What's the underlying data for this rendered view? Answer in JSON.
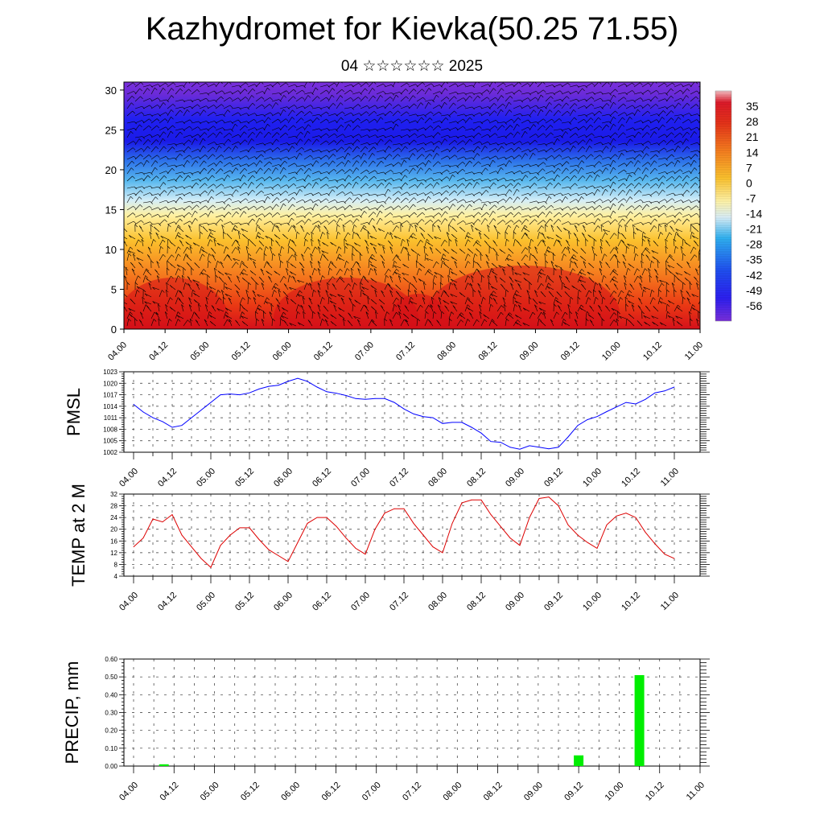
{
  "title": "Kazhydromet for Kievka(50.25 71.55)",
  "subtitle": "04 ☆☆☆☆☆☆ 2025",
  "time_ticks": [
    "04.00",
    "04.12",
    "05.00",
    "05.12",
    "06.00",
    "06.12",
    "07.00",
    "07.12",
    "08.00",
    "08.12",
    "09.00",
    "09.12",
    "10.00",
    "10.12",
    "11.00"
  ],
  "chart_data": [
    {
      "type": "heatmap",
      "description_fields": "cross-section temperature with wind barbs",
      "x": [
        "04.00",
        "04.12",
        "05.00",
        "05.12",
        "06.00",
        "06.12",
        "07.00",
        "07.12",
        "08.00",
        "08.12",
        "09.00",
        "09.12",
        "10.00",
        "10.12",
        "11.00"
      ],
      "ylim": [
        0,
        31
      ],
      "yticks": [
        0,
        5,
        10,
        15,
        20,
        25,
        30
      ],
      "colorbar_labels": [
        "35",
        "28",
        "21",
        "14",
        "7",
        "0",
        "-7",
        "-14",
        "-21",
        "-28",
        "-35",
        "-42",
        "-49",
        "-56"
      ],
      "colorbar_range": [
        -63,
        42
      ],
      "colors": [
        "#6b1fd0",
        "#1f1ff0",
        "#2f7cf0",
        "#bfe4f6",
        "#fffbd0",
        "#fbd23a",
        "#f58a1e",
        "#e8331c",
        "#f4a3a6"
      ]
    },
    {
      "type": "line",
      "ylabel": "PMSL",
      "ylim": [
        1002,
        1023
      ],
      "yticks": [
        1002,
        1005,
        1008,
        1011,
        1014,
        1017,
        1020,
        1023
      ],
      "color": "#0000ff",
      "x": [
        0,
        3,
        6,
        9,
        12,
        15,
        18,
        21,
        24,
        27,
        30,
        33,
        36,
        39,
        42,
        45,
        48,
        51,
        54,
        57,
        60,
        63,
        66,
        69,
        72,
        75,
        78,
        81,
        84,
        87,
        90,
        93,
        96,
        99,
        102,
        105,
        108,
        111,
        114,
        117,
        120,
        123,
        126,
        129,
        132,
        135,
        138,
        141,
        144,
        147,
        150,
        153,
        156,
        159,
        162,
        165,
        168
      ],
      "values": [
        1014.5,
        1012.5,
        1011,
        1010,
        1008.5,
        1009,
        1011,
        1013,
        1015,
        1017,
        1017.2,
        1017,
        1017.5,
        1018.5,
        1019.2,
        1019.5,
        1020.5,
        1021.3,
        1020.5,
        1019,
        1017.8,
        1017.4,
        1016.8,
        1016,
        1015.8,
        1016,
        1016,
        1015,
        1013.3,
        1012,
        1011.3,
        1011,
        1009.5,
        1009.8,
        1009.8,
        1008.5,
        1007,
        1004.8,
        1004.6,
        1003.3,
        1002.8,
        1003.7,
        1003.3,
        1002.9,
        1003.3,
        1006,
        1009,
        1010.5,
        1011.3,
        1012.6,
        1013.8,
        1015,
        1014.6,
        1015.8,
        1017.5,
        1018,
        1019
      ]
    },
    {
      "type": "line",
      "ylabel": "TEMP at 2 M",
      "ylim": [
        4,
        32
      ],
      "yticks": [
        4,
        8,
        12,
        16,
        20,
        24,
        28,
        32
      ],
      "color": "#dd0000",
      "x": [
        0,
        3,
        6,
        9,
        12,
        15,
        18,
        21,
        24,
        27,
        30,
        33,
        36,
        39,
        42,
        45,
        48,
        51,
        54,
        57,
        60,
        63,
        66,
        69,
        72,
        75,
        78,
        81,
        84,
        87,
        90,
        93,
        96,
        99,
        102,
        105,
        108,
        111,
        114,
        117,
        120,
        123,
        126,
        129,
        132,
        135,
        138,
        141,
        144,
        147,
        150,
        153,
        156,
        159,
        162,
        165,
        168
      ],
      "values": [
        14,
        17,
        23.5,
        22.5,
        25,
        18,
        14,
        10,
        7,
        14.5,
        18,
        20.5,
        20.5,
        16.5,
        13,
        11,
        9,
        15.5,
        22,
        24,
        24,
        21,
        17,
        13.5,
        11.5,
        20,
        25.5,
        27,
        27,
        22,
        18,
        14,
        12,
        22,
        29,
        30,
        30,
        25,
        21,
        17,
        14.5,
        24,
        30.5,
        31,
        28,
        21.5,
        18,
        15.5,
        13.5,
        21.5,
        24.5,
        25.5,
        24,
        19,
        15,
        11.5,
        10
      ]
    },
    {
      "type": "bar",
      "ylabel": "PRECIP, mm",
      "ylim": [
        0,
        0.6
      ],
      "yticks": [
        "0.00",
        "0.10",
        "0.20",
        "0.30",
        "0.40",
        "0.50",
        "0.60"
      ],
      "color": "#00ee00",
      "x": [
        9,
        132,
        150
      ],
      "values": [
        0.01,
        0.06,
        0.51
      ]
    }
  ]
}
